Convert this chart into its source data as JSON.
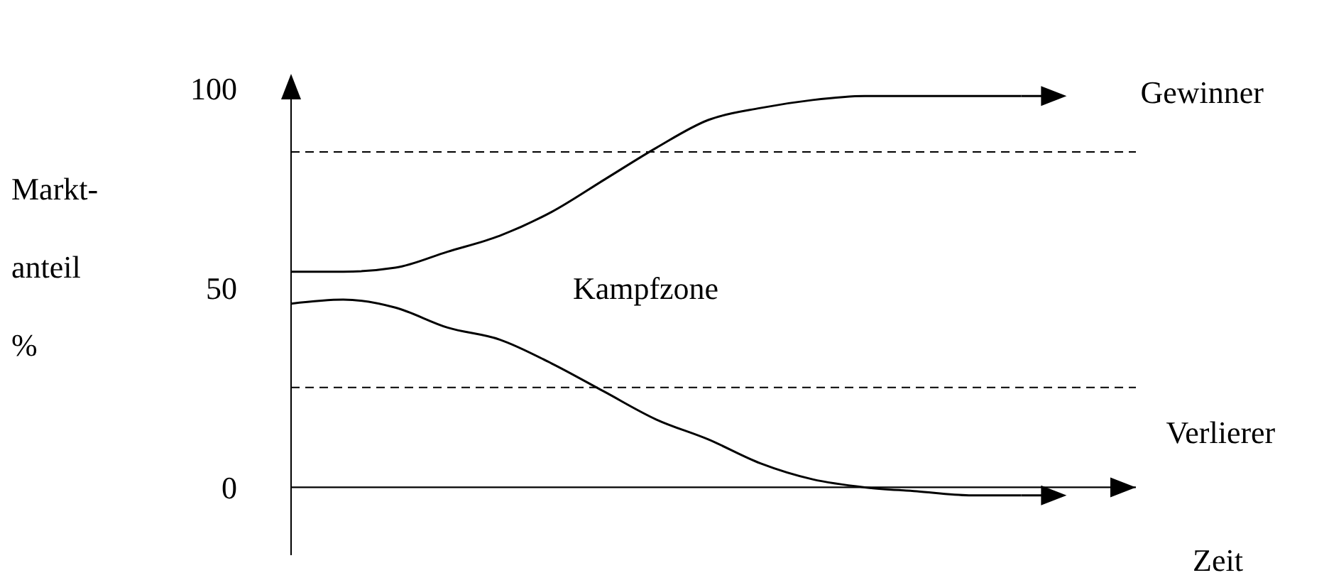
{
  "chart_data": {
    "type": "line",
    "xlabel": "Zeit",
    "ylabel": "Markt-\nanteil\n%",
    "annotations": [
      "Kampfzone"
    ],
    "categories": [
      null,
      null,
      null,
      null,
      null,
      null,
      null,
      null,
      null,
      null,
      null,
      null,
      null,
      null,
      null
    ],
    "series": [
      {
        "name": "Gewinner",
        "color": "#000000",
        "values": [
          54,
          54,
          55,
          59,
          63,
          69,
          77,
          85,
          92,
          95,
          97,
          98,
          98,
          98,
          98
        ]
      },
      {
        "name": "Verlierer",
        "color": "#000000",
        "values": [
          46,
          47,
          45,
          40,
          37,
          31,
          24,
          17,
          12,
          6,
          2,
          0,
          -1,
          -2,
          -2
        ]
      }
    ],
    "ylim": [
      -17,
      100
    ],
    "yticks": [
      0,
      50,
      100
    ],
    "ref_lines": [
      {
        "axis": "y",
        "value": 84,
        "line_style": "dashed",
        "color": "#000000"
      },
      {
        "axis": "y",
        "value": 25,
        "line_style": "dashed",
        "color": "#000000"
      }
    ],
    "marker": "none",
    "line_style": "solid",
    "tick_labels": "y"
  }
}
